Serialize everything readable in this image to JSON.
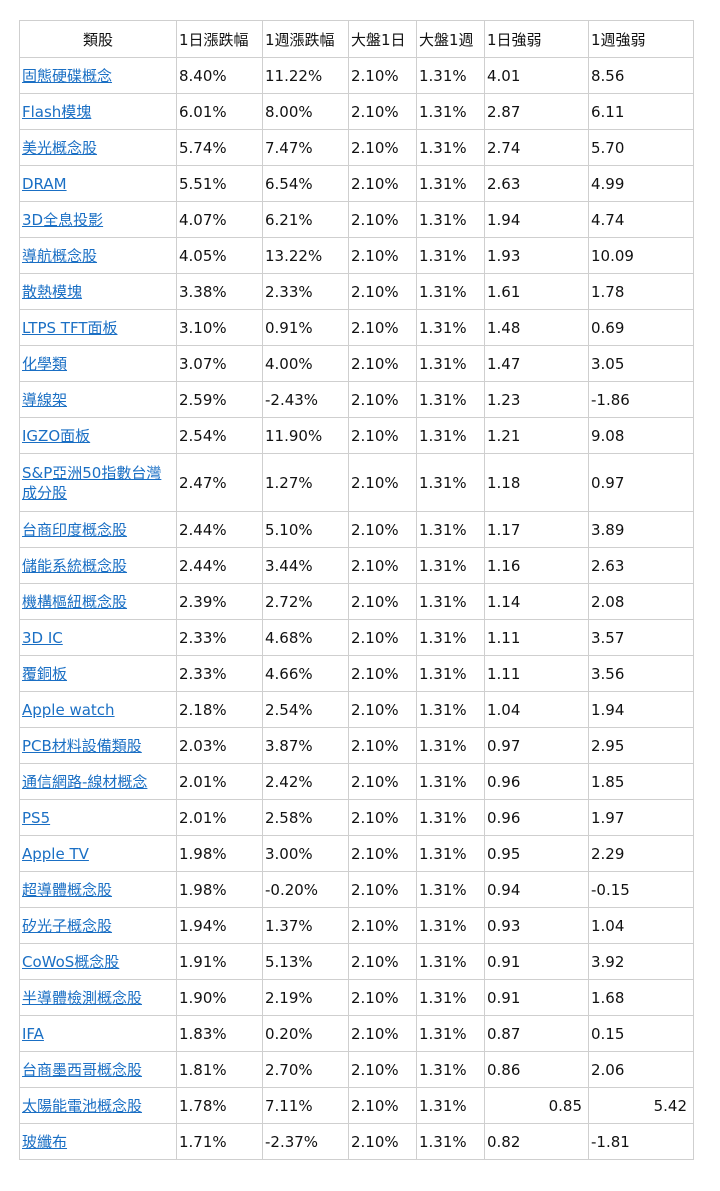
{
  "table": {
    "headers": [
      "類股",
      "1日漲跌幅",
      "1週漲跌幅",
      "大盤1日",
      "大盤1週",
      "1日強弱",
      "1週強弱"
    ],
    "rows": [
      {
        "sector": "固態硬碟概念",
        "d1": "8.40%",
        "w1": "11.22%",
        "m1d": "2.10%",
        "m1w": "1.31%",
        "s1d": "4.01",
        "s1w": "8.56"
      },
      {
        "sector": "Flash模塊",
        "d1": "6.01%",
        "w1": "8.00%",
        "m1d": "2.10%",
        "m1w": "1.31%",
        "s1d": "2.87",
        "s1w": "6.11"
      },
      {
        "sector": "美光概念股",
        "d1": "5.74%",
        "w1": "7.47%",
        "m1d": "2.10%",
        "m1w": "1.31%",
        "s1d": "2.74",
        "s1w": "5.70"
      },
      {
        "sector": "DRAM",
        "d1": "5.51%",
        "w1": "6.54%",
        "m1d": "2.10%",
        "m1w": "1.31%",
        "s1d": "2.63",
        "s1w": "4.99"
      },
      {
        "sector": "3D全息投影",
        "d1": "4.07%",
        "w1": "6.21%",
        "m1d": "2.10%",
        "m1w": "1.31%",
        "s1d": "1.94",
        "s1w": "4.74"
      },
      {
        "sector": "導航概念股",
        "d1": "4.05%",
        "w1": "13.22%",
        "m1d": "2.10%",
        "m1w": "1.31%",
        "s1d": "1.93",
        "s1w": "10.09"
      },
      {
        "sector": "散熱模塊",
        "d1": "3.38%",
        "w1": "2.33%",
        "m1d": "2.10%",
        "m1w": "1.31%",
        "s1d": "1.61",
        "s1w": "1.78"
      },
      {
        "sector": "LTPS TFT面板",
        "d1": "3.10%",
        "w1": "0.91%",
        "m1d": "2.10%",
        "m1w": "1.31%",
        "s1d": "1.48",
        "s1w": "0.69"
      },
      {
        "sector": "化學類",
        "d1": "3.07%",
        "w1": "4.00%",
        "m1d": "2.10%",
        "m1w": "1.31%",
        "s1d": "1.47",
        "s1w": "3.05"
      },
      {
        "sector": "導線架",
        "d1": "2.59%",
        "w1": "-2.43%",
        "m1d": "2.10%",
        "m1w": "1.31%",
        "s1d": "1.23",
        "s1w": "-1.86"
      },
      {
        "sector": "IGZO面板",
        "d1": "2.54%",
        "w1": "11.90%",
        "m1d": "2.10%",
        "m1w": "1.31%",
        "s1d": "1.21",
        "s1w": "9.08"
      },
      {
        "sector": "S&P亞洲50指數台灣成分股",
        "d1": "2.47%",
        "w1": "1.27%",
        "m1d": "2.10%",
        "m1w": "1.31%",
        "s1d": "1.18",
        "s1w": "0.97"
      },
      {
        "sector": "台商印度概念股",
        "d1": "2.44%",
        "w1": "5.10%",
        "m1d": "2.10%",
        "m1w": "1.31%",
        "s1d": "1.17",
        "s1w": "3.89"
      },
      {
        "sector": "儲能系統概念股",
        "d1": "2.44%",
        "w1": "3.44%",
        "m1d": "2.10%",
        "m1w": "1.31%",
        "s1d": "1.16",
        "s1w": "2.63"
      },
      {
        "sector": "機構樞紐概念股",
        "d1": "2.39%",
        "w1": "2.72%",
        "m1d": "2.10%",
        "m1w": "1.31%",
        "s1d": "1.14",
        "s1w": "2.08"
      },
      {
        "sector": "3D IC",
        "d1": "2.33%",
        "w1": "4.68%",
        "m1d": "2.10%",
        "m1w": "1.31%",
        "s1d": "1.11",
        "s1w": "3.57"
      },
      {
        "sector": "覆銅板",
        "d1": "2.33%",
        "w1": "4.66%",
        "m1d": "2.10%",
        "m1w": "1.31%",
        "s1d": "1.11",
        "s1w": "3.56"
      },
      {
        "sector": "Apple watch",
        "d1": "2.18%",
        "w1": "2.54%",
        "m1d": "2.10%",
        "m1w": "1.31%",
        "s1d": "1.04",
        "s1w": "1.94"
      },
      {
        "sector": "PCB材料設備類股",
        "d1": "2.03%",
        "w1": "3.87%",
        "m1d": "2.10%",
        "m1w": "1.31%",
        "s1d": "0.97",
        "s1w": "2.95"
      },
      {
        "sector": "通信網路-線材概念",
        "d1": "2.01%",
        "w1": "2.42%",
        "m1d": "2.10%",
        "m1w": "1.31%",
        "s1d": "0.96",
        "s1w": "1.85"
      },
      {
        "sector": "PS5",
        "d1": "2.01%",
        "w1": "2.58%",
        "m1d": "2.10%",
        "m1w": "1.31%",
        "s1d": "0.96",
        "s1w": "1.97"
      },
      {
        "sector": "Apple TV",
        "d1": "1.98%",
        "w1": "3.00%",
        "m1d": "2.10%",
        "m1w": "1.31%",
        "s1d": "0.95",
        "s1w": "2.29"
      },
      {
        "sector": "超導體概念股",
        "d1": "1.98%",
        "w1": "-0.20%",
        "m1d": "2.10%",
        "m1w": "1.31%",
        "s1d": "0.94",
        "s1w": "-0.15"
      },
      {
        "sector": "矽光子概念股",
        "d1": "1.94%",
        "w1": "1.37%",
        "m1d": "2.10%",
        "m1w": "1.31%",
        "s1d": "0.93",
        "s1w": "1.04"
      },
      {
        "sector": "CoWoS概念股",
        "d1": "1.91%",
        "w1": "5.13%",
        "m1d": "2.10%",
        "m1w": "1.31%",
        "s1d": "0.91",
        "s1w": "3.92"
      },
      {
        "sector": "半導體檢測概念股",
        "d1": "1.90%",
        "w1": "2.19%",
        "m1d": "2.10%",
        "m1w": "1.31%",
        "s1d": "0.91",
        "s1w": "1.68"
      },
      {
        "sector": "IFA",
        "d1": "1.83%",
        "w1": "0.20%",
        "m1d": "2.10%",
        "m1w": "1.31%",
        "s1d": "0.87",
        "s1w": "0.15"
      },
      {
        "sector": "台商墨西哥概念股",
        "d1": "1.81%",
        "w1": "2.70%",
        "m1d": "2.10%",
        "m1w": "1.31%",
        "s1d": "0.86",
        "s1w": "2.06"
      },
      {
        "sector": "太陽能電池概念股",
        "d1": "1.78%",
        "w1": "7.11%",
        "m1d": "2.10%",
        "m1w": "1.31%",
        "s1d": "0.85",
        "s1w": "5.42"
      },
      {
        "sector": "玻纖布",
        "d1": "1.71%",
        "w1": "-2.37%",
        "m1d": "2.10%",
        "m1w": "1.31%",
        "s1d": "0.82",
        "s1w": "-1.81"
      }
    ]
  }
}
